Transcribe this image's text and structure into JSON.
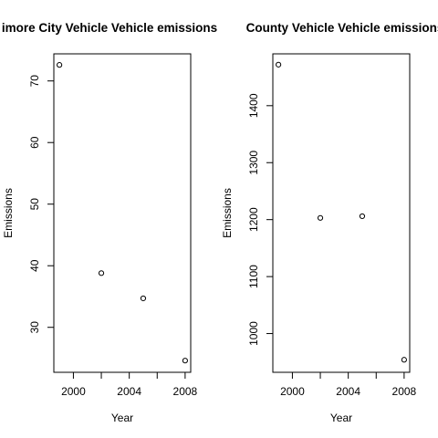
{
  "chart_data": [
    {
      "type": "scatter",
      "title": "imore City Vehicle Vehicle emissions",
      "xlabel": "Year",
      "ylabel": "Emissions",
      "xlim": [
        1998.6,
        2008.4
      ],
      "ylim": [
        22.7,
        74.4
      ],
      "xticks": [
        2000,
        2002,
        2004,
        2006,
        2008
      ],
      "xtick_labels": [
        "2000",
        "",
        "2004",
        "",
        "2008"
      ],
      "yticks": [
        30,
        40,
        50,
        60,
        70
      ],
      "ytick_labels": [
        "30",
        "40",
        "50",
        "60",
        "70"
      ],
      "x": [
        1999,
        2002,
        2005,
        2008
      ],
      "y": [
        72.6,
        38.8,
        34.7,
        24.6
      ],
      "grid": false,
      "legend": "none"
    },
    {
      "type": "scatter",
      "title": "County Vehicle Vehicle emissions p",
      "xlabel": "Year",
      "ylabel": "Emissions",
      "xlim": [
        1998.6,
        2008.4
      ],
      "ylim": [
        932,
        1491
      ],
      "xticks": [
        2000,
        2002,
        2004,
        2006,
        2008
      ],
      "xtick_labels": [
        "2000",
        "",
        "2004",
        "",
        "2008"
      ],
      "yticks": [
        1000,
        1100,
        1200,
        1300,
        1400
      ],
      "ytick_labels": [
        "1000",
        "1100",
        "1200",
        "1300",
        "1400"
      ],
      "x": [
        1999,
        2002,
        2005,
        2008
      ],
      "y": [
        1472,
        1203,
        1206,
        954
      ],
      "grid": false,
      "legend": "none"
    }
  ]
}
